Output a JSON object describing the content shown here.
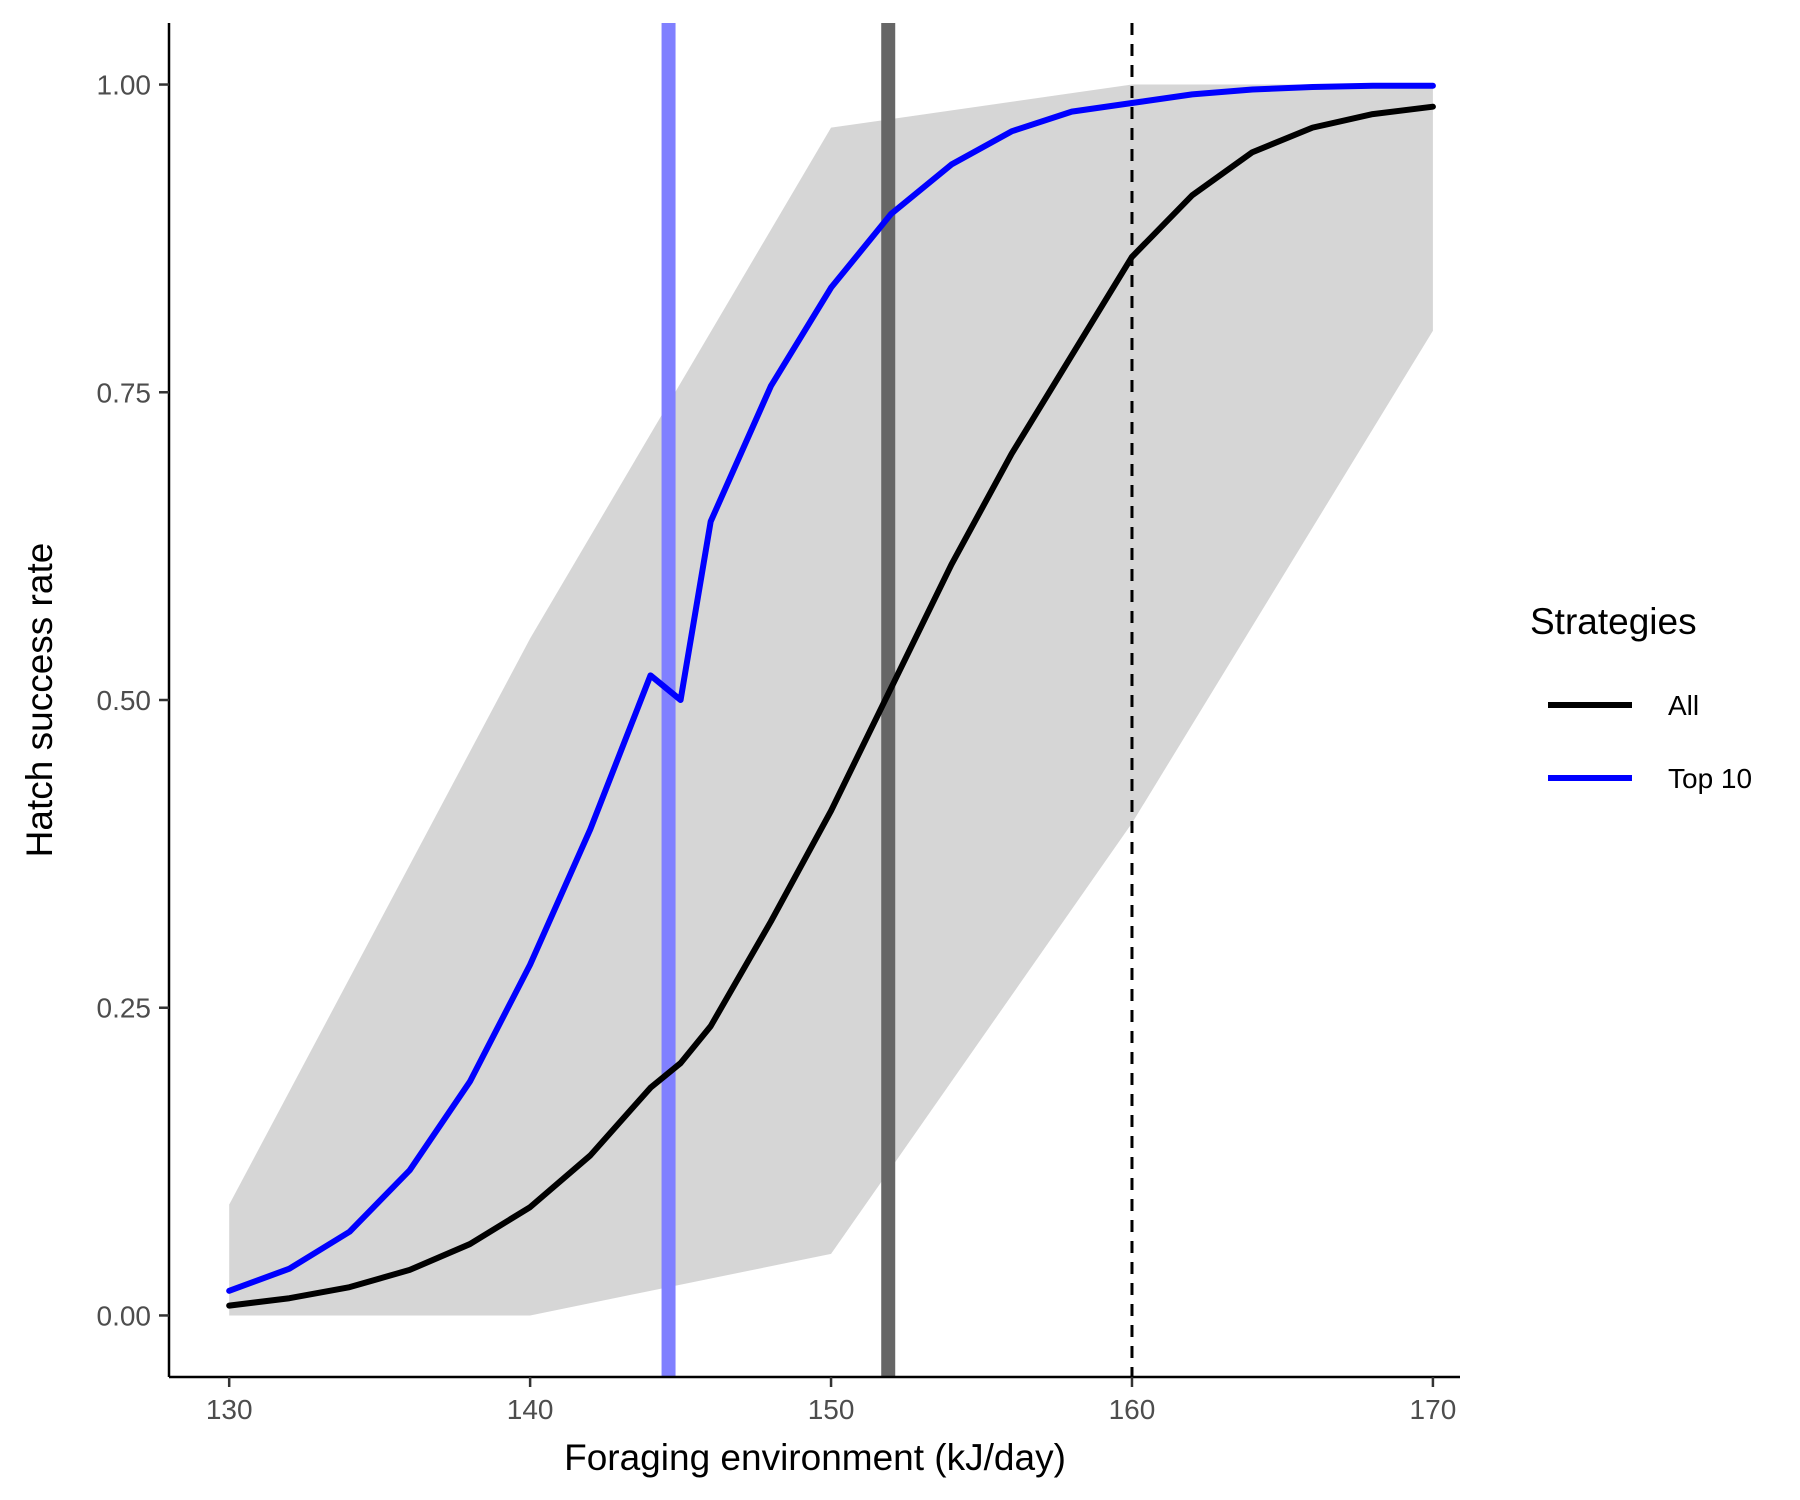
{
  "chart_data": {
    "type": "line",
    "xlabel": "Foraging environment (kJ/day)",
    "ylabel": "Hatch success rate",
    "xlim": [
      128,
      170.9
    ],
    "ylim": [
      -0.05,
      1.05
    ],
    "x_ticks": [
      {
        "value": 130,
        "label": "130"
      },
      {
        "value": 140,
        "label": "140"
      },
      {
        "value": 150,
        "label": "150"
      },
      {
        "value": 160,
        "label": "160"
      },
      {
        "value": 170,
        "label": "170"
      }
    ],
    "y_ticks": [
      {
        "value": 0.0,
        "label": "0.00"
      },
      {
        "value": 0.25,
        "label": "0.25"
      },
      {
        "value": 0.5,
        "label": "0.50"
      },
      {
        "value": 0.75,
        "label": "0.75"
      },
      {
        "value": 1.0,
        "label": "1.00"
      }
    ],
    "grid": false,
    "legend": {
      "title": "Strategies",
      "position": "right",
      "entries": [
        {
          "label": "All",
          "color": "#000000"
        },
        {
          "label": "Top 10",
          "color": "#0000ff"
        }
      ]
    },
    "series": [
      {
        "name": "All",
        "color": "#000000",
        "x": [
          130,
          132,
          134,
          136,
          138,
          140,
          142,
          144,
          145,
          146,
          148,
          150,
          152,
          154,
          156,
          158,
          160,
          162,
          164,
          166,
          168,
          170
        ],
        "y": [
          0.008,
          0.014,
          0.023,
          0.037,
          0.058,
          0.088,
          0.13,
          0.185,
          0.205,
          0.235,
          0.32,
          0.41,
          0.51,
          0.61,
          0.7,
          0.78,
          0.86,
          0.91,
          0.945,
          0.965,
          0.976,
          0.982
        ]
      },
      {
        "name": "Top 10",
        "color": "#0000ff",
        "x": [
          130,
          132,
          134,
          136,
          138,
          140,
          142,
          144,
          145,
          146,
          148,
          150,
          152,
          154,
          156,
          158,
          160,
          162,
          164,
          166,
          168,
          170
        ],
        "y": [
          0.02,
          0.038,
          0.068,
          0.118,
          0.19,
          0.285,
          0.395,
          0.52,
          0.5,
          0.645,
          0.755,
          0.835,
          0.895,
          0.935,
          0.962,
          0.978,
          0.985,
          0.992,
          0.996,
          0.998,
          0.999,
          0.999
        ]
      }
    ],
    "reference_lines": [
      {
        "orientation": "vertical",
        "x": 144.6,
        "color": "#8080ff",
        "style": "solid-thick"
      },
      {
        "orientation": "vertical",
        "x": 151.9,
        "color": "#666666",
        "style": "solid-thick"
      },
      {
        "orientation": "vertical",
        "x": 160,
        "color": "#000000",
        "style": "dashed"
      }
    ],
    "background_band": {
      "color": "#d6d6d6",
      "x": [
        130,
        140,
        150,
        160,
        170
      ],
      "upper": [
        0.09,
        0.55,
        0.965,
        1.0,
        1.0
      ],
      "lower": [
        0.0,
        0.0,
        0.05,
        0.4,
        0.8
      ]
    }
  }
}
